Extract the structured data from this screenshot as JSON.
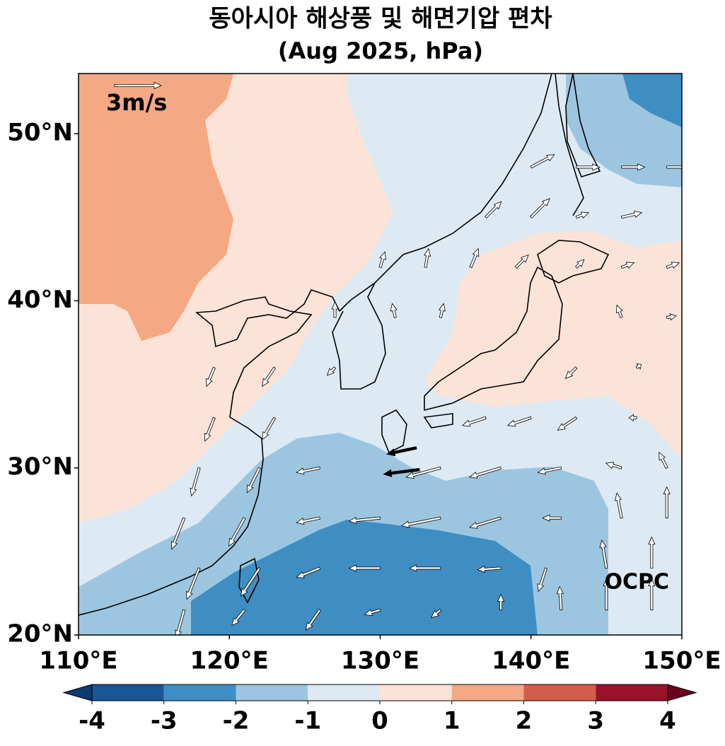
{
  "chart_data": {
    "type": "quiver-map",
    "title": "동아시아 해상풍 및 해면기압 편차",
    "subtitle": "(Aug 2025, hPa)",
    "xlim": [
      110,
      150
    ],
    "ylim": [
      20,
      53.6
    ],
    "xticks": [
      {
        "value": 110,
        "label": "110°E"
      },
      {
        "value": 120,
        "label": "120°E"
      },
      {
        "value": 130,
        "label": "130°E"
      },
      {
        "value": 140,
        "label": "140°E"
      },
      {
        "value": 150,
        "label": "150°E"
      }
    ],
    "yticks": [
      {
        "value": 20,
        "label": "20°N"
      },
      {
        "value": 30,
        "label": "30°N"
      },
      {
        "value": 40,
        "label": "40°N"
      },
      {
        "value": 50,
        "label": "50°N"
      }
    ],
    "reference_vector": {
      "value": 3,
      "label": "3m/s"
    },
    "vectors": [
      [
        140,
        48,
        1.5,
        0.8
      ],
      [
        143,
        48,
        1.5,
        0
      ],
      [
        146,
        48,
        1.5,
        0
      ],
      [
        149,
        48,
        1.5,
        0
      ],
      [
        137,
        45,
        1,
        1
      ],
      [
        140,
        45,
        1.2,
        1.2
      ],
      [
        143,
        45,
        0.8,
        0.3
      ],
      [
        146,
        45,
        1.3,
        0.3
      ],
      [
        130,
        42,
        0.3,
        1
      ],
      [
        133,
        42,
        0.2,
        1.2
      ],
      [
        136,
        42,
        0.5,
        1.2
      ],
      [
        139,
        42,
        0.8,
        0.8
      ],
      [
        143,
        42,
        0.5,
        0.5
      ],
      [
        146,
        42,
        0.8,
        0.3
      ],
      [
        149,
        42,
        0.8,
        0.3
      ],
      [
        127,
        39,
        0,
        1
      ],
      [
        131,
        39,
        -0.2,
        0.9
      ],
      [
        134,
        39,
        0.2,
        0.9
      ],
      [
        146,
        39,
        -0.3,
        0.8
      ],
      [
        149,
        39,
        0.6,
        0.1
      ],
      [
        119,
        36,
        -0.5,
        -1.2
      ],
      [
        123,
        36,
        -0.8,
        -1.2
      ],
      [
        127,
        36,
        -0.5,
        -0.5
      ],
      [
        143,
        36,
        -0.7,
        -0.7
      ],
      [
        147,
        36,
        0.3,
        0.2
      ],
      [
        119,
        33,
        -0.6,
        -1.5
      ],
      [
        123,
        33,
        -0.8,
        -1.4
      ],
      [
        137,
        33,
        -1.5,
        -0.5
      ],
      [
        140,
        33,
        -1.5,
        -0.5
      ],
      [
        143,
        33,
        -1.2,
        -0.8
      ],
      [
        147,
        33,
        -0.5,
        0
      ],
      [
        118,
        30,
        -0.5,
        -1.8
      ],
      [
        122,
        30,
        -0.8,
        -1.6
      ],
      [
        126,
        30,
        -1.5,
        -0.3
      ],
      [
        134,
        30,
        -2.2,
        -0.6
      ],
      [
        138,
        30,
        -2,
        -0.6
      ],
      [
        142,
        30,
        -1.5,
        -0.3
      ],
      [
        146,
        30,
        -1,
        0.3
      ],
      [
        149,
        30,
        -0.5,
        1
      ],
      [
        117,
        27,
        -0.8,
        -2
      ],
      [
        121,
        27,
        -1,
        -1.8
      ],
      [
        126,
        27,
        -1.5,
        -0.3
      ],
      [
        130,
        27,
        -2,
        -0.2
      ],
      [
        134,
        27,
        -2.5,
        -0.5
      ],
      [
        138,
        27,
        -2,
        -0.6
      ],
      [
        142,
        27,
        -1.2,
        0
      ],
      [
        146,
        27,
        -0.3,
        1.6
      ],
      [
        149,
        27,
        0,
        2
      ],
      [
        118,
        24,
        -0.8,
        -2
      ],
      [
        122,
        24,
        -1.2,
        -1.8
      ],
      [
        126,
        24,
        -1.5,
        -0.6
      ],
      [
        130,
        24,
        -2,
        0
      ],
      [
        134,
        24,
        -2,
        0
      ],
      [
        138,
        24,
        -1.5,
        -0.1
      ],
      [
        141,
        24,
        -0.5,
        -1.5
      ],
      [
        145,
        24,
        -0.3,
        1.8
      ],
      [
        148,
        24,
        0,
        2
      ],
      [
        117,
        21.5,
        -0.5,
        -1.8
      ],
      [
        121,
        21.5,
        -0.8,
        -1
      ],
      [
        126,
        21.5,
        -0.9,
        -1.3
      ],
      [
        130,
        21.5,
        -1,
        -0.3
      ],
      [
        134,
        21.5,
        -0.6,
        -0.5
      ],
      [
        138,
        21.5,
        0,
        1
      ],
      [
        142,
        21.5,
        -0.1,
        1.5
      ],
      [
        145,
        21.5,
        0,
        2
      ],
      [
        148,
        21.5,
        0,
        2
      ]
    ],
    "highlight_vectors": [
      [
        132.4,
        31.2,
        -1.9,
        -0.4
      ],
      [
        132.6,
        29.9,
        -2.3,
        -0.3
      ]
    ],
    "colorbar": {
      "levels": [
        -4,
        -3,
        -2,
        -1,
        0,
        1,
        2,
        3,
        4
      ],
      "ticks": [
        -4,
        -3,
        -2,
        -1,
        0,
        1,
        2,
        3,
        4
      ],
      "colors": [
        "#1a5596",
        "#3f8ec3",
        "#9cc6e0",
        "#ddeaf3",
        "#fbe3d8",
        "#f4a883",
        "#d35d4d",
        "#9a1229"
      ],
      "under": "#0d3a70",
      "over": "#6b0021"
    },
    "logo": "OCPC"
  }
}
